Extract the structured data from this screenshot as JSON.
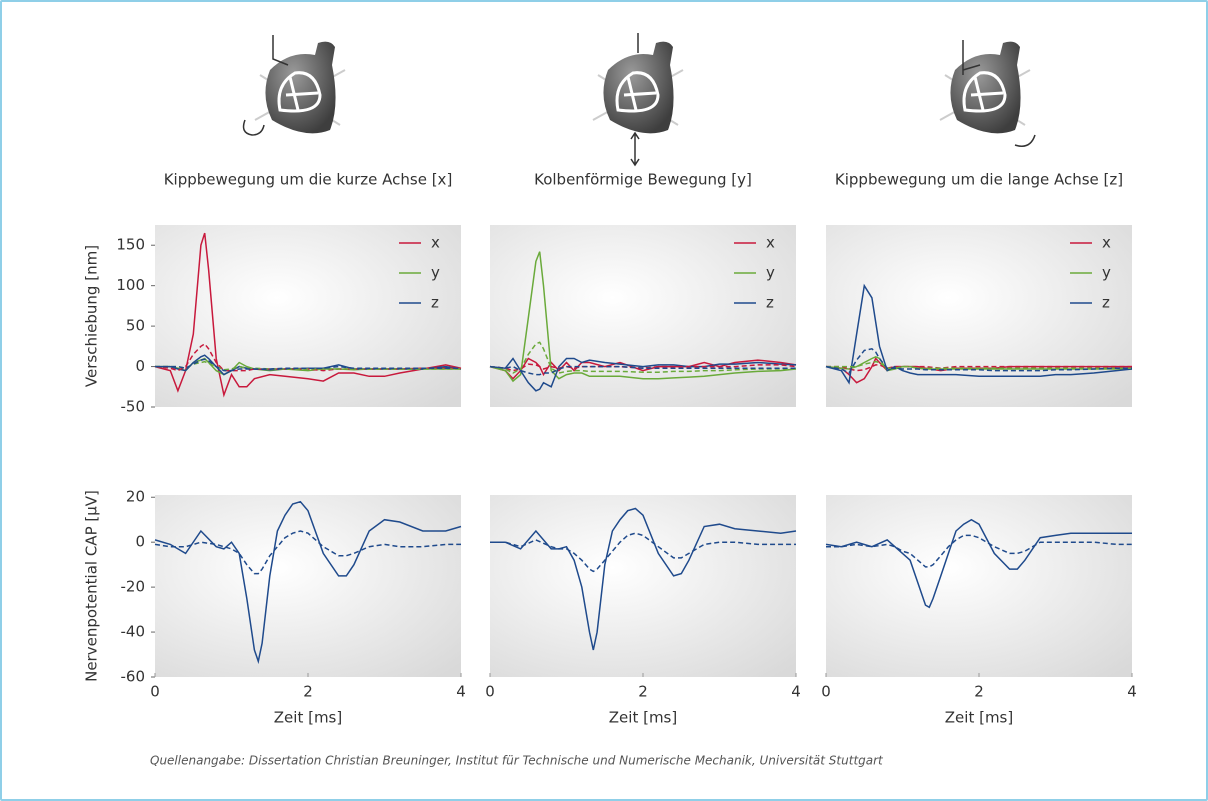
{
  "chart_data": [
    {
      "type": "line",
      "title": "Kippbewegung um die kurze Achse [x]",
      "ylabel": "Verschiebung [nm]",
      "x": [
        0,
        0.2,
        0.3,
        0.4,
        0.5,
        0.6,
        0.65,
        0.7,
        0.8,
        0.9,
        1.0,
        1.1,
        1.2,
        1.3,
        1.5,
        1.7,
        2.0,
        2.2,
        2.4,
        2.6,
        2.8,
        3.0,
        3.2,
        3.5,
        3.8,
        4.0
      ],
      "xlim": [
        0,
        4
      ],
      "ylim": [
        -50,
        175
      ],
      "yticks": [
        -50,
        0,
        50,
        100,
        150
      ],
      "legend": "upper right",
      "series": [
        {
          "name": "x",
          "color": "#c8193c",
          "values": [
            0,
            -5,
            -30,
            -5,
            40,
            150,
            165,
            120,
            10,
            -35,
            -10,
            -25,
            -25,
            -15,
            -10,
            -12,
            -15,
            -18,
            -8,
            -8,
            -12,
            -12,
            -8,
            -3,
            2,
            -2
          ]
        },
        {
          "name": "y",
          "color": "#6aaa3a",
          "values": [
            0,
            0,
            -2,
            -5,
            5,
            8,
            10,
            5,
            -5,
            -10,
            -5,
            5,
            0,
            -3,
            -5,
            -3,
            -5,
            -3,
            -3,
            -4,
            -3,
            -3,
            -3,
            -3,
            -3,
            -3
          ]
        },
        {
          "name": "z",
          "color": "#1f4a8c",
          "values": [
            0,
            0,
            -3,
            -5,
            5,
            12,
            14,
            10,
            0,
            -10,
            -5,
            0,
            -2,
            -3,
            -4,
            -3,
            -2,
            -2,
            2,
            -3,
            -3,
            -3,
            -3,
            -3,
            0,
            -3
          ]
        },
        {
          "color": "#c8193c",
          "dash": true,
          "values": [
            0,
            -2,
            -5,
            0,
            15,
            25,
            28,
            22,
            5,
            -5,
            -5,
            -5,
            -5,
            -3,
            -3,
            -3,
            -3,
            -5,
            -3,
            -3,
            -3,
            -3,
            -3,
            -2,
            -2,
            -2
          ]
        },
        {
          "color": "#6aaa3a",
          "dash": true,
          "values": [
            0,
            0,
            0,
            -2,
            3,
            5,
            6,
            4,
            0,
            -4,
            -3,
            0,
            -2,
            -2,
            -3,
            -3,
            -3,
            -3,
            -3,
            -3,
            -3,
            -3,
            -3,
            -3,
            -3,
            -3
          ]
        },
        {
          "color": "#1f4a8c",
          "dash": true,
          "values": [
            0,
            0,
            0,
            -2,
            3,
            8,
            9,
            7,
            0,
            -5,
            -5,
            -3,
            -3,
            -3,
            -3,
            -2,
            -2,
            -2,
            0,
            -2,
            -2,
            -2,
            -2,
            -2,
            -2,
            -2
          ]
        }
      ]
    },
    {
      "type": "line",
      "title": "Kolbenförmige Bewegung [y]",
      "x": [
        0,
        0.2,
        0.3,
        0.4,
        0.5,
        0.6,
        0.65,
        0.7,
        0.8,
        0.9,
        1.0,
        1.1,
        1.2,
        1.3,
        1.5,
        1.7,
        2.0,
        2.2,
        2.4,
        2.6,
        2.8,
        3.0,
        3.2,
        3.5,
        3.8,
        4.0
      ],
      "xlim": [
        0,
        4
      ],
      "ylim": [
        -50,
        175
      ],
      "legend": "upper right",
      "series": [
        {
          "name": "x",
          "color": "#c8193c",
          "values": [
            0,
            -5,
            -15,
            -5,
            10,
            5,
            0,
            -10,
            5,
            -5,
            5,
            -5,
            5,
            5,
            0,
            5,
            -5,
            0,
            0,
            0,
            5,
            0,
            5,
            8,
            5,
            2
          ]
        },
        {
          "name": "y",
          "color": "#6aaa3a",
          "values": [
            0,
            -5,
            -18,
            -10,
            60,
            130,
            142,
            100,
            -5,
            -15,
            -10,
            -8,
            -8,
            -12,
            -12,
            -12,
            -15,
            -15,
            -14,
            -13,
            -12,
            -10,
            -8,
            -6,
            -5,
            -3
          ]
        },
        {
          "name": "z",
          "color": "#1f4a8c",
          "values": [
            0,
            -2,
            10,
            -5,
            -20,
            -30,
            -28,
            -20,
            -25,
            0,
            10,
            10,
            5,
            8,
            5,
            3,
            0,
            2,
            2,
            0,
            0,
            3,
            3,
            5,
            3,
            2
          ]
        },
        {
          "color": "#c8193c",
          "dash": true,
          "values": [
            0,
            -2,
            -5,
            -3,
            3,
            2,
            0,
            -3,
            0,
            -2,
            0,
            -2,
            0,
            0,
            0,
            0,
            -2,
            0,
            0,
            0,
            0,
            0,
            0,
            2,
            2,
            0
          ]
        },
        {
          "color": "#6aaa3a",
          "dash": true,
          "values": [
            0,
            -3,
            -8,
            -3,
            15,
            28,
            30,
            22,
            -2,
            -8,
            -6,
            -5,
            -5,
            -6,
            -6,
            -6,
            -7,
            -7,
            -6,
            -6,
            -5,
            -5,
            -4,
            -3,
            -3,
            -2
          ]
        },
        {
          "color": "#1f4a8c",
          "dash": true,
          "values": [
            0,
            -2,
            0,
            -5,
            -8,
            -10,
            -10,
            -8,
            -8,
            -3,
            0,
            0,
            0,
            0,
            0,
            0,
            -2,
            -2,
            -2,
            -2,
            -2,
            -2,
            -2,
            -2,
            -2,
            -2
          ]
        }
      ]
    },
    {
      "type": "line",
      "title": "Kippbewegung um die lange Achse [z]",
      "x": [
        0,
        0.2,
        0.3,
        0.4,
        0.5,
        0.6,
        0.65,
        0.7,
        0.8,
        0.9,
        1.0,
        1.1,
        1.2,
        1.3,
        1.5,
        1.7,
        2.0,
        2.2,
        2.4,
        2.6,
        2.8,
        3.0,
        3.2,
        3.5,
        3.8,
        4.0
      ],
      "xlim": [
        0,
        4
      ],
      "ylim": [
        -50,
        175
      ],
      "legend": "upper right",
      "series": [
        {
          "name": "x",
          "color": "#c8193c",
          "values": [
            0,
            -2,
            -10,
            -20,
            -15,
            0,
            10,
            5,
            -5,
            0,
            0,
            0,
            0,
            -2,
            -5,
            -2,
            -2,
            -2,
            0,
            0,
            0,
            0,
            0,
            0,
            0,
            0
          ]
        },
        {
          "name": "y",
          "color": "#6aaa3a",
          "values": [
            0,
            -2,
            -3,
            0,
            5,
            10,
            12,
            10,
            -5,
            -3,
            0,
            0,
            -2,
            -3,
            -3,
            -3,
            -3,
            -3,
            -3,
            -3,
            -3,
            -3,
            -3,
            -3,
            -3,
            -3
          ]
        },
        {
          "name": "z",
          "color": "#1f4a8c",
          "values": [
            0,
            -5,
            -20,
            40,
            100,
            85,
            55,
            25,
            -5,
            0,
            -5,
            -8,
            -10,
            -10,
            -10,
            -10,
            -12,
            -12,
            -12,
            -12,
            -12,
            -10,
            -10,
            -8,
            -5,
            -3
          ]
        },
        {
          "color": "#c8193c",
          "dash": true,
          "values": [
            0,
            0,
            -3,
            -5,
            -4,
            0,
            2,
            2,
            -2,
            0,
            0,
            0,
            0,
            0,
            -2,
            0,
            0,
            0,
            0,
            0,
            0,
            0,
            0,
            0,
            0,
            0
          ]
        },
        {
          "color": "#6aaa3a",
          "dash": true,
          "values": [
            0,
            0,
            0,
            0,
            3,
            5,
            6,
            5,
            -2,
            -2,
            0,
            0,
            -2,
            -2,
            -2,
            -2,
            -2,
            -2,
            -2,
            -2,
            -2,
            -2,
            -2,
            -2,
            -2,
            -2
          ]
        },
        {
          "color": "#1f4a8c",
          "dash": true,
          "values": [
            0,
            -3,
            -8,
            8,
            20,
            22,
            18,
            10,
            -2,
            -2,
            -3,
            -3,
            -3,
            -4,
            -4,
            -4,
            -4,
            -5,
            -5,
            -5,
            -5,
            -4,
            -4,
            -3,
            -2,
            -2
          ]
        }
      ]
    },
    {
      "type": "line",
      "ylabel": "Nervenpotential CAP [µV]",
      "xlabel": "Zeit [ms]",
      "x": [
        0,
        0.2,
        0.4,
        0.6,
        0.8,
        0.9,
        1.0,
        1.1,
        1.2,
        1.3,
        1.35,
        1.4,
        1.5,
        1.6,
        1.7,
        1.8,
        1.9,
        2.0,
        2.2,
        2.4,
        2.5,
        2.6,
        2.8,
        3.0,
        3.2,
        3.5,
        3.8,
        4.0
      ],
      "xlim": [
        0,
        4
      ],
      "xticks": [
        0,
        2,
        4
      ],
      "ylim": [
        -60,
        21
      ],
      "yticks": [
        -60,
        -40,
        -20,
        0,
        20
      ],
      "series": [
        {
          "color": "#1f4a8c",
          "values": [
            1,
            -1,
            -5,
            5,
            -2,
            -3,
            0,
            -5,
            -25,
            -48,
            -53,
            -45,
            -15,
            5,
            12,
            17,
            18,
            14,
            -5,
            -15,
            -15,
            -10,
            5,
            10,
            9,
            5,
            5,
            7
          ]
        },
        {
          "color": "#1f4a8c",
          "dash": true,
          "values": [
            -1,
            -2,
            -2,
            0,
            -1,
            -2,
            -3,
            -5,
            -10,
            -14,
            -14,
            -12,
            -6,
            -2,
            2,
            4,
            5,
            4,
            -2,
            -6,
            -6,
            -5,
            -2,
            -1,
            -2,
            -2,
            -1,
            -1
          ]
        }
      ]
    },
    {
      "type": "line",
      "xlabel": "Zeit [ms]",
      "x": [
        0,
        0.2,
        0.4,
        0.6,
        0.8,
        0.9,
        1.0,
        1.1,
        1.2,
        1.3,
        1.35,
        1.4,
        1.5,
        1.6,
        1.7,
        1.8,
        1.9,
        2.0,
        2.2,
        2.4,
        2.5,
        2.6,
        2.8,
        3.0,
        3.2,
        3.5,
        3.8,
        4.0
      ],
      "xlim": [
        0,
        4
      ],
      "xticks": [
        0,
        2,
        4
      ],
      "ylim": [
        -60,
        21
      ],
      "series": [
        {
          "color": "#1f4a8c",
          "values": [
            0,
            0,
            -3,
            5,
            -3,
            -3,
            -2,
            -8,
            -20,
            -40,
            -48,
            -40,
            -10,
            5,
            10,
            14,
            15,
            12,
            -5,
            -15,
            -14,
            -8,
            7,
            8,
            6,
            5,
            4,
            5
          ]
        },
        {
          "color": "#1f4a8c",
          "dash": true,
          "values": [
            0,
            0,
            -2,
            1,
            -2,
            -3,
            -3,
            -5,
            -8,
            -12,
            -13,
            -12,
            -8,
            -4,
            0,
            3,
            4,
            3,
            -2,
            -7,
            -7,
            -5,
            -1,
            0,
            0,
            -1,
            -1,
            -1
          ]
        }
      ]
    },
    {
      "type": "line",
      "xlabel": "Zeit [ms]",
      "x": [
        0,
        0.2,
        0.4,
        0.6,
        0.8,
        0.9,
        1.0,
        1.1,
        1.2,
        1.3,
        1.35,
        1.4,
        1.5,
        1.6,
        1.7,
        1.8,
        1.9,
        2.0,
        2.2,
        2.4,
        2.5,
        2.6,
        2.8,
        3.0,
        3.2,
        3.5,
        3.8,
        4.0
      ],
      "xlim": [
        0,
        4
      ],
      "xticks": [
        0,
        2,
        4
      ],
      "ylim": [
        -60,
        21
      ],
      "series": [
        {
          "color": "#1f4a8c",
          "values": [
            -1,
            -2,
            0,
            -2,
            1,
            -2,
            -5,
            -8,
            -18,
            -28,
            -29,
            -25,
            -15,
            -5,
            5,
            8,
            10,
            8,
            -5,
            -12,
            -12,
            -8,
            2,
            3,
            4,
            4,
            4,
            4
          ]
        },
        {
          "color": "#1f4a8c",
          "dash": true,
          "values": [
            -2,
            -2,
            -1,
            -2,
            -1,
            -2,
            -4,
            -5,
            -8,
            -11,
            -11,
            -10,
            -6,
            -2,
            1,
            3,
            3,
            2,
            -2,
            -5,
            -5,
            -4,
            0,
            0,
            0,
            0,
            -1,
            -1
          ]
        }
      ]
    }
  ],
  "footer": {
    "source": "Quellenangabe: Dissertation Christian Breuninger, Institut für Technische und Numerische Mechanik, Universität Stuttgart"
  }
}
